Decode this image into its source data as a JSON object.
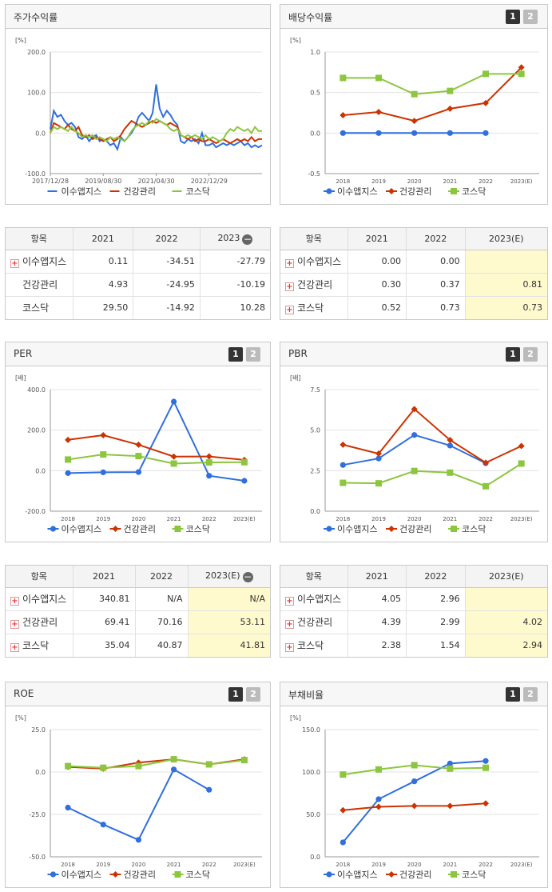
{
  "colors": {
    "s1": "#2f6fde",
    "s2": "#cc3300",
    "s3": "#8cc63f"
  },
  "page_labels": {
    "p1": "1",
    "p2": "2"
  },
  "charts": {
    "stock": {
      "title": "주가수익률",
      "unit": "[%]",
      "legend": [
        "이수앱지스",
        "건강관리",
        "코스닥"
      ],
      "chart_data": {
        "type": "line",
        "title": "주가수익률",
        "ylabel": "[%]",
        "ylim": [
          -100,
          200
        ],
        "yticks": [
          "200.0",
          "100.0",
          "0.0",
          "-100.0"
        ],
        "xticks": [
          "2017/12/28",
          "2019/08/30",
          "2021/04/30",
          "2022/12/29"
        ],
        "x_range": [
          0,
          60
        ],
        "xtick_pos": [
          0,
          15,
          30,
          45
        ],
        "series": [
          {
            "name": "이수앱지스",
            "values": [
              10,
              55,
              40,
              45,
              30,
              20,
              25,
              15,
              -10,
              -15,
              -5,
              -20,
              -10,
              -5,
              -20,
              -15,
              -20,
              -30,
              -25,
              -40,
              -10,
              -20,
              -10,
              0,
              15,
              40,
              50,
              40,
              30,
              50,
              120,
              60,
              40,
              55,
              45,
              30,
              20,
              -20,
              -25,
              -15,
              -20,
              -15,
              -25,
              0,
              -30,
              -30,
              -25,
              -35,
              -30,
              -25,
              -30,
              -25,
              -30,
              -25,
              -20,
              -30,
              -25,
              -35,
              -30,
              -35,
              -30
            ]
          },
          {
            "name": "건강관리",
            "values": [
              0,
              25,
              20,
              15,
              10,
              20,
              10,
              5,
              15,
              -5,
              -10,
              -5,
              -15,
              -10,
              -15,
              -20,
              -15,
              -10,
              -20,
              -15,
              -5,
              10,
              20,
              30,
              25,
              20,
              15,
              20,
              25,
              30,
              25,
              30,
              25,
              20,
              25,
              20,
              15,
              -5,
              -10,
              -15,
              -10,
              -20,
              -15,
              -20,
              -20,
              -15,
              -20,
              -25,
              -20,
              -15,
              -20,
              -25,
              -20,
              -15,
              -20,
              -15,
              -20,
              -10,
              -20,
              -15,
              -15
            ]
          },
          {
            "name": "코스닥",
            "values": [
              0,
              15,
              10,
              15,
              10,
              5,
              15,
              5,
              0,
              -10,
              -5,
              -10,
              -5,
              -15,
              -10,
              -15,
              -20,
              -10,
              -15,
              -10,
              -15,
              -20,
              -10,
              5,
              15,
              20,
              25,
              20,
              30,
              25,
              35,
              30,
              25,
              20,
              10,
              5,
              10,
              -5,
              -10,
              -5,
              -10,
              -5,
              -10,
              -15,
              -5,
              -15,
              -10,
              -15,
              -20,
              -15,
              0,
              10,
              5,
              15,
              10,
              5,
              10,
              0,
              15,
              5,
              5
            ]
          }
        ]
      }
    },
    "dividend": {
      "title": "배당수익률",
      "unit": "[%]",
      "legend": [
        "이수앱지스",
        "건강관리",
        "코스닥"
      ],
      "chart_data": {
        "type": "line",
        "title": "배당수익률",
        "ylabel": "[%]",
        "ylim": [
          -0.5,
          1.0
        ],
        "yticks": [
          "1.0",
          "0.5",
          "0.0",
          "-0.5"
        ],
        "categories": [
          "2018",
          "2019",
          "2020",
          "2021",
          "2022",
          "2023(E)"
        ],
        "series": [
          {
            "name": "이수앱지스",
            "marker": "circle",
            "values": [
              0.0,
              0.0,
              0.0,
              0.0,
              0.0,
              null
            ]
          },
          {
            "name": "건강관리",
            "marker": "diamond",
            "values": [
              0.22,
              0.26,
              0.15,
              0.3,
              0.37,
              0.81
            ]
          },
          {
            "name": "코스닥",
            "marker": "square",
            "values": [
              0.68,
              0.68,
              0.48,
              0.52,
              0.73,
              0.73
            ]
          }
        ]
      }
    },
    "per": {
      "title": "PER",
      "unit": "[배]",
      "legend": [
        "이수앱지스",
        "건강관리",
        "코스닥"
      ],
      "chart_data": {
        "type": "line",
        "title": "PER",
        "ylabel": "[배]",
        "ylim": [
          -200,
          400
        ],
        "yticks": [
          "400.0",
          "200.0",
          "0.0",
          "-200.0"
        ],
        "categories": [
          "2018",
          "2019",
          "2020",
          "2021",
          "2022",
          "2023(E)"
        ],
        "series": [
          {
            "name": "이수앱지스",
            "marker": "circle",
            "values": [
              -12,
              -8,
              -7,
              340.81,
              -25,
              -50
            ]
          },
          {
            "name": "건강관리",
            "marker": "diamond",
            "values": [
              152,
              175,
              128,
              69.41,
              70.16,
              53.11
            ]
          },
          {
            "name": "코스닥",
            "marker": "square",
            "values": [
              55,
              80,
              72,
              35.04,
              40.87,
              41.81
            ]
          }
        ]
      }
    },
    "pbr": {
      "title": "PBR",
      "unit": "[배]",
      "legend": [
        "이수앱지스",
        "건강관리",
        "코스닥"
      ],
      "chart_data": {
        "type": "line",
        "title": "PBR",
        "ylabel": "[배]",
        "ylim": [
          0,
          7.5
        ],
        "yticks": [
          "7.5",
          "5.0",
          "2.5",
          "0.0"
        ],
        "categories": [
          "2018",
          "2019",
          "2020",
          "2021",
          "2022",
          "2023(E)"
        ],
        "series": [
          {
            "name": "이수앱지스",
            "marker": "circle",
            "values": [
              2.85,
              3.25,
              4.7,
              4.05,
              2.96,
              null
            ]
          },
          {
            "name": "건강관리",
            "marker": "diamond",
            "values": [
              4.1,
              3.55,
              6.3,
              4.39,
              2.99,
              4.02
            ]
          },
          {
            "name": "코스닥",
            "marker": "square",
            "values": [
              1.75,
              1.72,
              2.48,
              2.38,
              1.54,
              2.94
            ]
          }
        ]
      }
    },
    "roe": {
      "title": "ROE",
      "unit": "[%]",
      "legend": [
        "이수앱지스",
        "건강관리",
        "코스닥"
      ],
      "chart_data": {
        "type": "line",
        "title": "ROE",
        "ylabel": "[%]",
        "ylim": [
          -50,
          25
        ],
        "yticks": [
          "25.0",
          "0.0",
          "-25.0",
          "-50.0"
        ],
        "categories": [
          "2018",
          "2019",
          "2020",
          "2021",
          "2022",
          "2023(E)"
        ],
        "series": [
          {
            "name": "이수앱지스",
            "marker": "circle",
            "values": [
              -21,
              -31,
              -40,
              1.5,
              -10.5,
              null
            ]
          },
          {
            "name": "건강관리",
            "marker": "diamond",
            "values": [
              3,
              2,
              5.5,
              7.5,
              4.5,
              7.5
            ]
          },
          {
            "name": "코스닥",
            "marker": "square",
            "values": [
              3.5,
              2.5,
              3.5,
              7.5,
              4.5,
              7
            ]
          }
        ]
      }
    },
    "debt": {
      "title": "부채비율",
      "unit": "[%]",
      "legend": [
        "이수앱지스",
        "건강관리",
        "코스닥"
      ],
      "chart_data": {
        "type": "line",
        "title": "부채비율",
        "ylabel": "[%]",
        "ylim": [
          0,
          150
        ],
        "yticks": [
          "150.0",
          "100.0",
          "50.0",
          "0.0"
        ],
        "categories": [
          "2018",
          "2019",
          "2020",
          "2021",
          "2022",
          "2023(E)"
        ],
        "series": [
          {
            "name": "이수앱지스",
            "marker": "circle",
            "values": [
              17,
              68,
              89,
              110,
              113,
              null
            ]
          },
          {
            "name": "건강관리",
            "marker": "diamond",
            "values": [
              55,
              59,
              60,
              60,
              63,
              null
            ]
          },
          {
            "name": "코스닥",
            "marker": "square",
            "values": [
              97,
              103,
              108,
              104,
              105,
              null
            ]
          }
        ]
      }
    }
  },
  "tables": {
    "stock": {
      "header": [
        "항목",
        "2021",
        "2022",
        "2023"
      ],
      "rows": [
        {
          "name": "이수앱지스",
          "plus": true,
          "values": [
            "0.11",
            "-34.51",
            "-27.79"
          ]
        },
        {
          "name": "건강관리",
          "plus": false,
          "values": [
            "4.93",
            "-24.95",
            "-10.19"
          ]
        },
        {
          "name": "코스닥",
          "plus": false,
          "values": [
            "29.50",
            "-14.92",
            "10.28"
          ]
        }
      ]
    },
    "dividend": {
      "header": [
        "항목",
        "2021",
        "2022",
        "2023(E)"
      ],
      "rows": [
        {
          "name": "이수앱지스",
          "plus": true,
          "values": [
            "0.00",
            "0.00",
            ""
          ]
        },
        {
          "name": "건강관리",
          "plus": true,
          "values": [
            "0.30",
            "0.37",
            "0.81"
          ]
        },
        {
          "name": "코스닥",
          "plus": true,
          "values": [
            "0.52",
            "0.73",
            "0.73"
          ]
        }
      ]
    },
    "per": {
      "header": [
        "항목",
        "2021",
        "2022",
        "2023(E)"
      ],
      "rows": [
        {
          "name": "이수앱지스",
          "plus": true,
          "values": [
            "340.81",
            "N/A",
            "N/A"
          ]
        },
        {
          "name": "건강관리",
          "plus": true,
          "values": [
            "69.41",
            "70.16",
            "53.11"
          ]
        },
        {
          "name": "코스닥",
          "plus": true,
          "values": [
            "35.04",
            "40.87",
            "41.81"
          ]
        }
      ]
    },
    "pbr": {
      "header": [
        "항목",
        "2021",
        "2022",
        "2023(E)"
      ],
      "rows": [
        {
          "name": "이수앱지스",
          "plus": true,
          "values": [
            "4.05",
            "2.96",
            ""
          ]
        },
        {
          "name": "건강관리",
          "plus": true,
          "values": [
            "4.39",
            "2.99",
            "4.02"
          ]
        },
        {
          "name": "코스닥",
          "plus": true,
          "values": [
            "2.38",
            "1.54",
            "2.94"
          ]
        }
      ]
    }
  }
}
